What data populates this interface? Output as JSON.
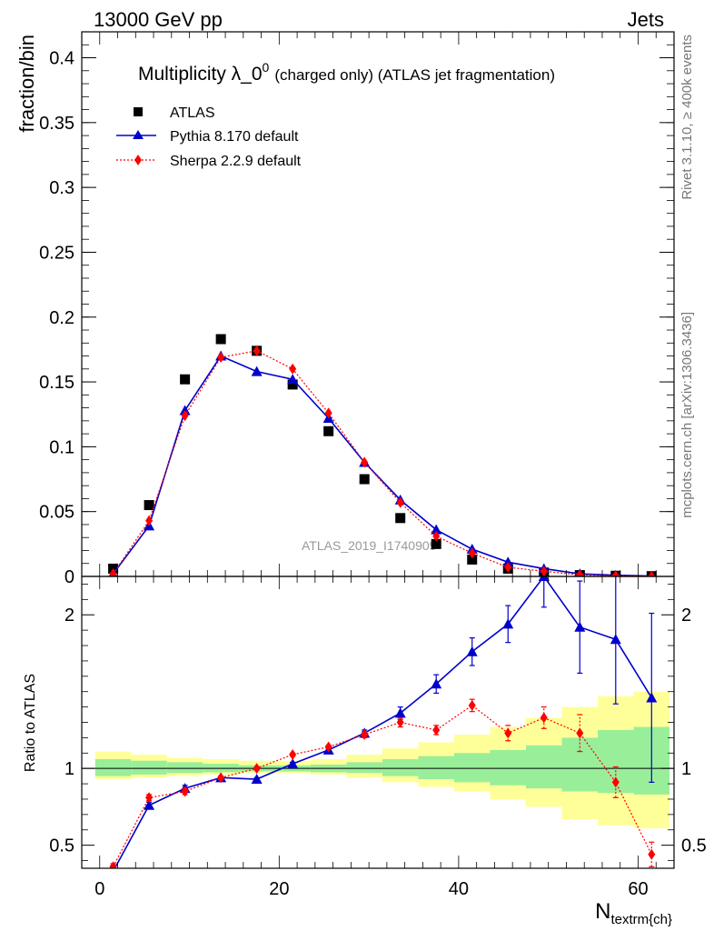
{
  "header": {
    "left": "13000 GeV pp",
    "right": "Jets"
  },
  "side_labels": {
    "top": "Rivet 3.1.10, ≥ 400k events",
    "bottom": "mcplots.cern.ch [arXiv:1306.3436]"
  },
  "watermark": "ATLAS_2019_I1740909",
  "colors": {
    "atlas": "#000000",
    "pythia": "#0000cc",
    "sherpa": "#ff0000",
    "band_outer": "#ffff99",
    "band_inner": "#99ee99"
  },
  "chart_data": [
    {
      "id": "main",
      "type": "scatter",
      "title": "Multiplicity λ_0⁰ (charged only) (ATLAS jet fragmentation)",
      "title_main": "Multiplicity λ_0",
      "title_sup": "0",
      "title_rest": "(charged only) (ATLAS jet fragmentation)",
      "ylabel": "fraction/bin",
      "xlim": [
        -2,
        64
      ],
      "ylim": [
        0,
        0.42
      ],
      "yticks": [
        0,
        0.05,
        0.1,
        0.15,
        0.2,
        0.25,
        0.3,
        0.35,
        0.4
      ],
      "ytick_labels": [
        "0",
        "0.05",
        "0.1",
        "0.15",
        "0.2",
        "0.25",
        "0.3",
        "0.35",
        "0.4"
      ],
      "legend_position": "top-left",
      "series": [
        {
          "name": "ATLAS",
          "marker": "square",
          "x": [
            1.5,
            5.5,
            9.5,
            13.5,
            17.5,
            21.5,
            25.5,
            29.5,
            33.5,
            37.5,
            41.5,
            45.5,
            49.5,
            53.5,
            57.5,
            61.5
          ],
          "y": [
            0.006,
            0.055,
            0.152,
            0.183,
            0.174,
            0.148,
            0.112,
            0.075,
            0.045,
            0.025,
            0.013,
            0.006,
            0.003,
            0.001,
            0.0005,
            0.0002
          ]
        },
        {
          "name": "Pythia 8.170 default",
          "marker": "triangle",
          "x": [
            1.5,
            5.5,
            9.5,
            13.5,
            17.5,
            21.5,
            25.5,
            29.5,
            33.5,
            37.5,
            41.5,
            45.5,
            49.5,
            53.5,
            57.5,
            61.5
          ],
          "y": [
            0.002,
            0.039,
            0.128,
            0.17,
            0.158,
            0.152,
            0.122,
            0.088,
            0.059,
            0.036,
            0.021,
            0.011,
            0.006,
            0.002,
            0.0009,
            0.0003
          ],
          "err": [
            0.001,
            0.001,
            0.002,
            0.003,
            0.002,
            0.002,
            0.002,
            0.001,
            0.001,
            0.001,
            0.001,
            0.001,
            0.0005,
            0.0003,
            0.0002,
            0.0001
          ]
        },
        {
          "name": "Sherpa 2.2.9 default",
          "marker": "diamond",
          "x": [
            1.5,
            5.5,
            9.5,
            13.5,
            17.5,
            21.5,
            25.5,
            29.5,
            33.5,
            37.5,
            41.5,
            45.5,
            49.5,
            53.5,
            57.5,
            61.5
          ],
          "y": [
            0.002,
            0.043,
            0.124,
            0.169,
            0.174,
            0.16,
            0.126,
            0.088,
            0.057,
            0.031,
            0.018,
            0.007,
            0.004,
            0.0012,
            0.0005,
            0.0001
          ],
          "err": [
            0.001,
            0.001,
            0.002,
            0.003,
            0.002,
            0.002,
            0.002,
            0.001,
            0.001,
            0.001,
            0.001,
            0.001,
            0.0005,
            0.0003,
            0.0002,
            0.0001
          ]
        }
      ]
    },
    {
      "id": "ratio",
      "type": "line",
      "ylabel": "Ratio to ATLAS",
      "xlabel": "N",
      "xlabel_sub": "textrm{ch}",
      "xlim": [
        -2,
        64
      ],
      "ylim": [
        0.35,
        2.25
      ],
      "xticks": [
        0,
        20,
        40,
        60
      ],
      "xtick_labels": [
        "0",
        "20",
        "40",
        "60"
      ],
      "yticks": [
        0.5,
        1,
        2
      ],
      "ytick_labels": [
        "0.5",
        "1",
        "2"
      ],
      "bins": [
        [
          -0.5,
          3.5
        ],
        [
          3.5,
          7.5
        ],
        [
          7.5,
          11.5
        ],
        [
          11.5,
          15.5
        ],
        [
          15.5,
          19.5
        ],
        [
          19.5,
          23.5
        ],
        [
          23.5,
          27.5
        ],
        [
          27.5,
          31.5
        ],
        [
          31.5,
          35.5
        ],
        [
          35.5,
          39.5
        ],
        [
          39.5,
          43.5
        ],
        [
          43.5,
          47.5
        ],
        [
          47.5,
          51.5
        ],
        [
          51.5,
          55.5
        ],
        [
          55.5,
          59.5
        ],
        [
          59.5,
          63.5
        ]
      ],
      "band_inner": [
        [
          0.95,
          1.06
        ],
        [
          0.96,
          1.05
        ],
        [
          0.97,
          1.04
        ],
        [
          0.975,
          1.03
        ],
        [
          0.98,
          1.02
        ],
        [
          0.98,
          1.02
        ],
        [
          0.975,
          1.025
        ],
        [
          0.97,
          1.04
        ],
        [
          0.95,
          1.06
        ],
        [
          0.93,
          1.08
        ],
        [
          0.91,
          1.1
        ],
        [
          0.89,
          1.12
        ],
        [
          0.87,
          1.15
        ],
        [
          0.85,
          1.2
        ],
        [
          0.84,
          1.25
        ],
        [
          0.83,
          1.27
        ]
      ],
      "band_outer": [
        [
          0.93,
          1.11
        ],
        [
          0.94,
          1.09
        ],
        [
          0.95,
          1.07
        ],
        [
          0.96,
          1.06
        ],
        [
          0.97,
          1.05
        ],
        [
          0.97,
          1.05
        ],
        [
          0.96,
          1.06
        ],
        [
          0.94,
          1.09
        ],
        [
          0.91,
          1.13
        ],
        [
          0.88,
          1.17
        ],
        [
          0.85,
          1.22
        ],
        [
          0.8,
          1.27
        ],
        [
          0.75,
          1.33
        ],
        [
          0.67,
          1.4
        ],
        [
          0.63,
          1.47
        ],
        [
          0.61,
          1.5
        ]
      ],
      "series": [
        {
          "name": "Pythia 8.170 default",
          "x": [
            1.5,
            5.5,
            9.5,
            13.5,
            17.5,
            21.5,
            25.5,
            29.5,
            33.5,
            37.5,
            41.5,
            45.5,
            49.5,
            53.5,
            57.5,
            61.5
          ],
          "y": [
            0.33,
            0.76,
            0.87,
            0.94,
            0.93,
            1.03,
            1.12,
            1.23,
            1.36,
            1.55,
            1.76,
            1.94,
            2.25,
            1.92,
            1.84,
            1.46
          ],
          "err": [
            0.01,
            0.02,
            0.02,
            0.01,
            0.01,
            0.01,
            0.01,
            0.02,
            0.04,
            0.06,
            0.09,
            0.12,
            0.2,
            0.3,
            0.42,
            0.55
          ]
        },
        {
          "name": "Sherpa 2.2.9 default",
          "x": [
            1.5,
            5.5,
            9.5,
            13.5,
            17.5,
            21.5,
            25.5,
            29.5,
            33.5,
            37.5,
            41.5,
            45.5,
            49.5,
            53.5,
            57.5,
            61.5
          ],
          "y": [
            0.36,
            0.81,
            0.85,
            0.94,
            1.0,
            1.09,
            1.14,
            1.22,
            1.3,
            1.25,
            1.41,
            1.23,
            1.33,
            1.23,
            0.91,
            0.44
          ],
          "err": [
            0.02,
            0.02,
            0.02,
            0.01,
            0.01,
            0.01,
            0.01,
            0.02,
            0.03,
            0.03,
            0.04,
            0.05,
            0.07,
            0.12,
            0.1,
            0.08
          ]
        }
      ]
    }
  ]
}
